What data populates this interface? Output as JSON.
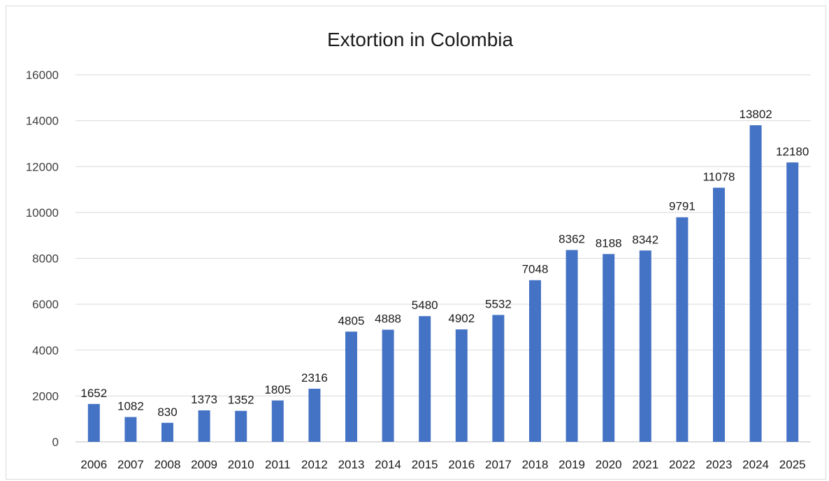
{
  "chart_data": {
    "type": "bar",
    "title": "Extortion in Colombia",
    "xlabel": "",
    "ylabel": "",
    "ylim": [
      0,
      16000
    ],
    "yticks": [
      0,
      2000,
      4000,
      6000,
      8000,
      10000,
      12000,
      14000,
      16000
    ],
    "grid": true,
    "legend": "none",
    "bar_color": "#4472C4",
    "categories": [
      "2006",
      "2007",
      "2008",
      "2009",
      "2010",
      "2011",
      "2012",
      "2013",
      "2014",
      "2015",
      "2016",
      "2017",
      "2018",
      "2019",
      "2020",
      "2021",
      "2022",
      "2023",
      "2024",
      "2025"
    ],
    "values": [
      1652,
      1082,
      830,
      1373,
      1352,
      1805,
      2316,
      4805,
      4888,
      5480,
      4902,
      5532,
      7048,
      8362,
      8188,
      8342,
      9791,
      11078,
      13802,
      12180
    ],
    "data_labels": true
  }
}
